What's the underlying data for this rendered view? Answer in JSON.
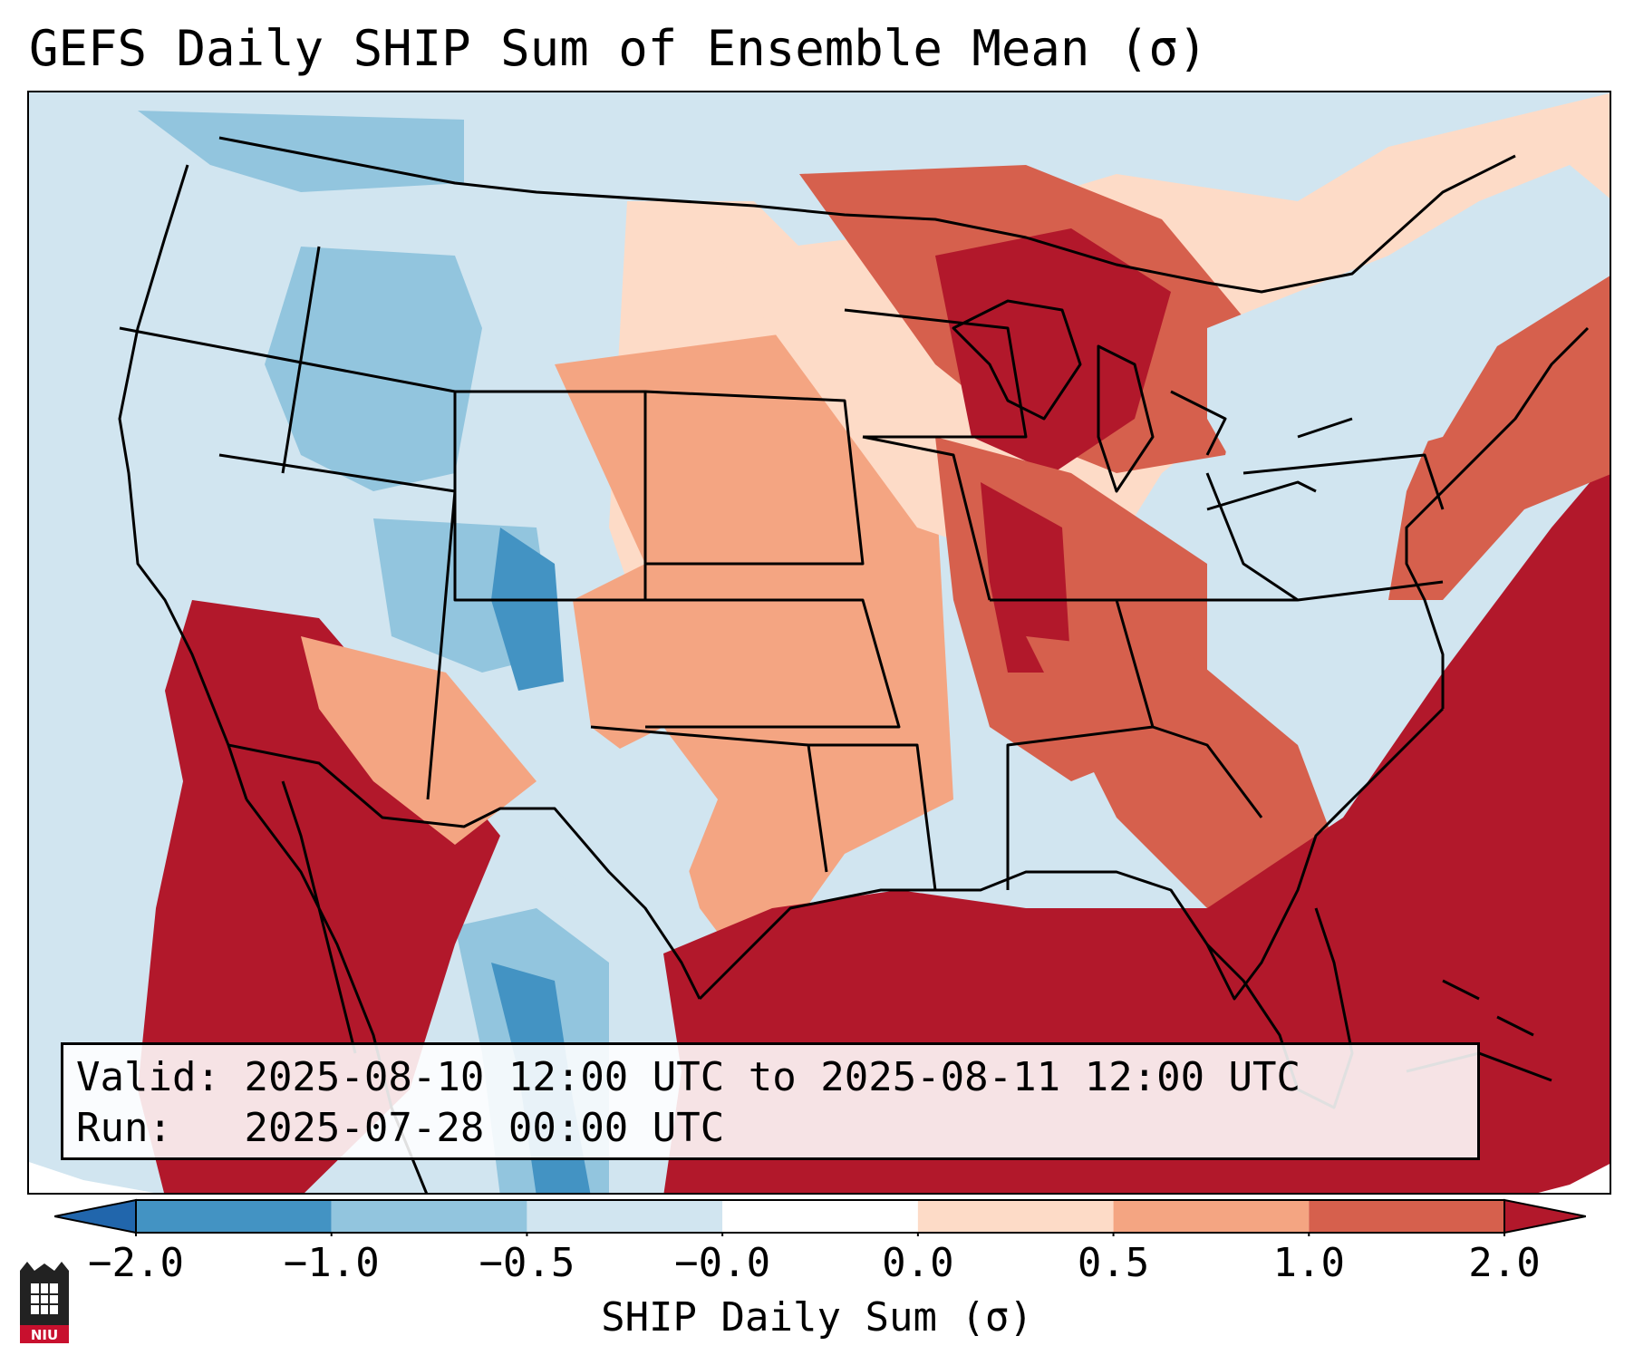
{
  "title": "GEFS Daily SHIP Sum of Ensemble Mean (σ)",
  "info": {
    "valid_label": "Valid:",
    "valid_value": "2025-08-10 12:00 UTC to 2025-08-11 12:00 UTC",
    "run_label": "Run:",
    "run_value": "2025-07-28 00:00 UTC"
  },
  "colorbar": {
    "label": "SHIP Daily Sum (σ)",
    "ticks": [
      "−2.0",
      "−1.0",
      "−0.5",
      "−0.0",
      "0.0",
      "0.5",
      "1.0",
      "2.0"
    ],
    "colors": {
      "below": "#2166ac",
      "bins": [
        "#4393c3",
        "#92c5de",
        "#d1e5f0",
        "#ffffff",
        "#fddbc7",
        "#f4a582",
        "#d6604d"
      ],
      "above": "#b2182b"
    },
    "extend": "both"
  },
  "logo": {
    "text": "NIU"
  }
}
